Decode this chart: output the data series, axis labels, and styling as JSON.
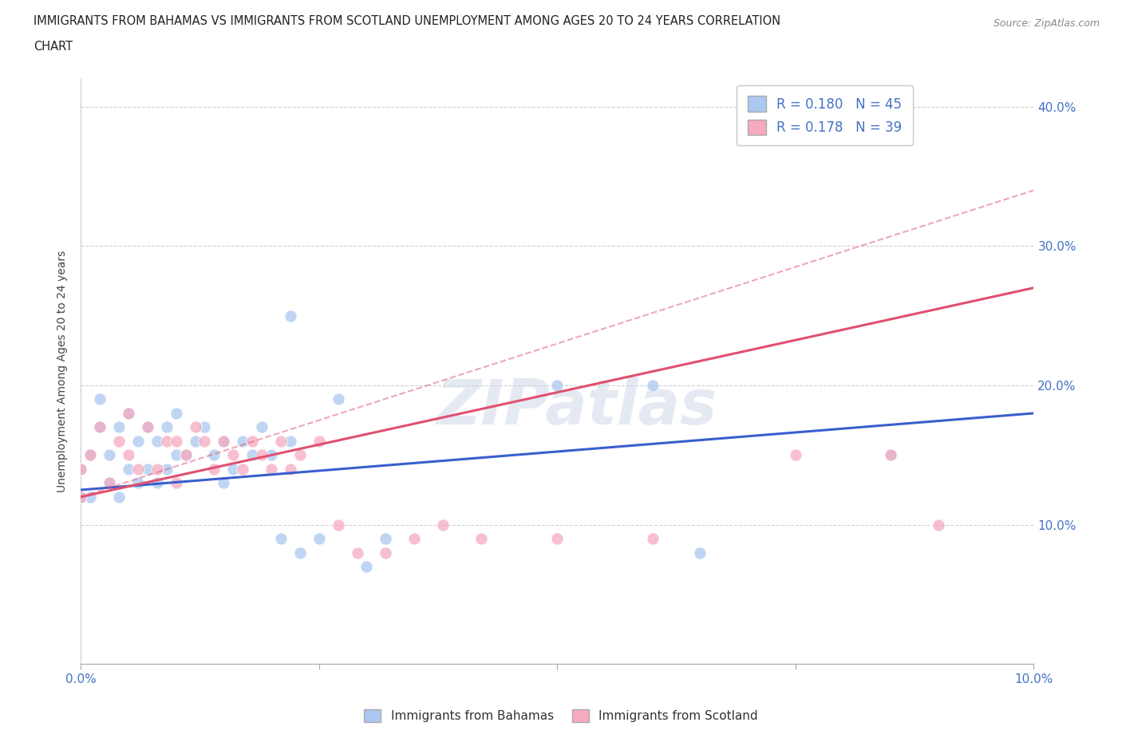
{
  "title_line1": "IMMIGRANTS FROM BAHAMAS VS IMMIGRANTS FROM SCOTLAND UNEMPLOYMENT AMONG AGES 20 TO 24 YEARS CORRELATION",
  "title_line2": "CHART",
  "source_text": "Source: ZipAtlas.com",
  "ylabel": "Unemployment Among Ages 20 to 24 years",
  "xlim": [
    0.0,
    0.1
  ],
  "ylim": [
    0.0,
    0.42
  ],
  "x_ticks": [
    0.0,
    0.025,
    0.05,
    0.075,
    0.1
  ],
  "x_tick_labels": [
    "0.0%",
    "",
    "",
    "",
    "10.0%"
  ],
  "y_ticks": [
    0.0,
    0.1,
    0.2,
    0.3,
    0.4
  ],
  "y_tick_labels_right": [
    "",
    "10.0%",
    "20.0%",
    "30.0%",
    "40.0%"
  ],
  "legend_entries": [
    {
      "label": "R = 0.180   N = 45",
      "color": "#b8d0f0"
    },
    {
      "label": "R = 0.178   N = 39",
      "color": "#f5b8c8"
    }
  ],
  "bottom_legend": [
    {
      "label": "Immigrants from Bahamas",
      "color": "#b8d0f0"
    },
    {
      "label": "Immigrants from Scotland",
      "color": "#f5b8c8"
    }
  ],
  "bahamas_x": [
    0.0,
    0.0,
    0.001,
    0.001,
    0.002,
    0.002,
    0.003,
    0.003,
    0.004,
    0.004,
    0.005,
    0.005,
    0.006,
    0.006,
    0.007,
    0.007,
    0.008,
    0.008,
    0.009,
    0.009,
    0.01,
    0.01,
    0.011,
    0.012,
    0.013,
    0.014,
    0.015,
    0.015,
    0.016,
    0.017,
    0.018,
    0.019,
    0.02,
    0.021,
    0.022,
    0.023,
    0.025,
    0.027,
    0.03,
    0.032,
    0.05,
    0.06,
    0.065,
    0.085,
    0.022
  ],
  "bahamas_y": [
    0.12,
    0.14,
    0.12,
    0.15,
    0.17,
    0.19,
    0.13,
    0.15,
    0.12,
    0.17,
    0.14,
    0.18,
    0.13,
    0.16,
    0.14,
    0.17,
    0.13,
    0.16,
    0.14,
    0.17,
    0.15,
    0.18,
    0.15,
    0.16,
    0.17,
    0.15,
    0.16,
    0.13,
    0.14,
    0.16,
    0.15,
    0.17,
    0.15,
    0.09,
    0.16,
    0.08,
    0.09,
    0.19,
    0.07,
    0.09,
    0.2,
    0.2,
    0.08,
    0.15,
    0.25
  ],
  "scotland_x": [
    0.0,
    0.0,
    0.001,
    0.002,
    0.003,
    0.004,
    0.005,
    0.005,
    0.006,
    0.007,
    0.008,
    0.009,
    0.01,
    0.01,
    0.011,
    0.012,
    0.013,
    0.014,
    0.015,
    0.016,
    0.017,
    0.018,
    0.019,
    0.02,
    0.021,
    0.022,
    0.023,
    0.025,
    0.027,
    0.029,
    0.032,
    0.035,
    0.038,
    0.042,
    0.05,
    0.06,
    0.075,
    0.085,
    0.09
  ],
  "scotland_y": [
    0.12,
    0.14,
    0.15,
    0.17,
    0.13,
    0.16,
    0.15,
    0.18,
    0.14,
    0.17,
    0.14,
    0.16,
    0.13,
    0.16,
    0.15,
    0.17,
    0.16,
    0.14,
    0.16,
    0.15,
    0.14,
    0.16,
    0.15,
    0.14,
    0.16,
    0.14,
    0.15,
    0.16,
    0.1,
    0.08,
    0.08,
    0.09,
    0.1,
    0.09,
    0.09,
    0.09,
    0.15,
    0.15,
    0.1
  ],
  "bahamas_line_color": "#3a5fcd",
  "scotland_line_color": "#e05070",
  "bahamas_scatter_color": "#aac8f0",
  "scotland_scatter_color": "#f5aac0",
  "scatter_alpha": 0.75,
  "scatter_size": 120,
  "watermark": "ZIPatlas",
  "grid_color": "#d0d0d0",
  "background_color": "white",
  "bahamas_line_b0": 0.125,
  "bahamas_line_b1": 0.55,
  "scotland_line_b0": 0.12,
  "scotland_line_b1": 1.5,
  "scotland_dashed_b0": 0.12,
  "scotland_dashed_b1": 2.2
}
